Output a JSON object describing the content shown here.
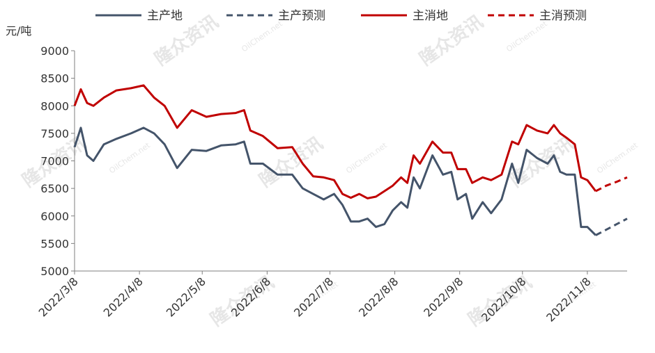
{
  "chart_data": {
    "type": "line",
    "y_label": "元/吨",
    "watermark": [
      "隆众资讯",
      "OilChem.net"
    ],
    "x": [
      "2022/3/8",
      "2022/3/11",
      "2022/3/14",
      "2022/3/17",
      "2022/3/22",
      "2022/3/28",
      "2022/4/4",
      "2022/4/10",
      "2022/4/15",
      "2022/4/20",
      "2022/4/26",
      "2022/5/3",
      "2022/5/10",
      "2022/5/17",
      "2022/5/24",
      "2022/5/28",
      "2022/5/31",
      "2022/6/6",
      "2022/6/13",
      "2022/6/20",
      "2022/6/25",
      "2022/6/30",
      "2022/7/5",
      "2022/7/10",
      "2022/7/14",
      "2022/7/18",
      "2022/7/22",
      "2022/7/26",
      "2022/7/30",
      "2022/8/3",
      "2022/8/7",
      "2022/8/11",
      "2022/8/14",
      "2022/8/17",
      "2022/8/20",
      "2022/8/26",
      "2022/8/31",
      "2022/9/4",
      "2022/9/7",
      "2022/9/11",
      "2022/9/14",
      "2022/9/19",
      "2022/9/23",
      "2022/9/28",
      "2022/10/3",
      "2022/10/6",
      "2022/10/10",
      "2022/10/15",
      "2022/10/20",
      "2022/10/23",
      "2022/10/26",
      "2022/10/29",
      "2022/11/2",
      "2022/11/5",
      "2022/11/8",
      "2022/11/12",
      "2022/11/17",
      "2022/11/22",
      "2022/11/27"
    ],
    "series": [
      {
        "name": "主产地",
        "color": "#44546a",
        "dash": false,
        "values": [
          7250,
          7600,
          7100,
          7000,
          7300,
          7400,
          7500,
          7600,
          7500,
          7300,
          6870,
          7200,
          7180,
          7280,
          7300,
          7350,
          6950,
          6950,
          6750,
          6750,
          6500,
          6400,
          6300,
          6400,
          6200,
          5900,
          5900,
          5950,
          5800,
          5850,
          6100,
          6250,
          6150,
          6700,
          6500,
          7100,
          6750,
          6800,
          6300,
          6400,
          5950,
          6250,
          6050,
          6300,
          6950,
          6600,
          7200,
          7050,
          6950,
          7100,
          6800,
          6750,
          6750,
          5800,
          5800,
          5650,
          null,
          null,
          null
        ]
      },
      {
        "name": "主产预测",
        "color": "#44546a",
        "dash": true,
        "values": [
          null,
          null,
          null,
          null,
          null,
          null,
          null,
          null,
          null,
          null,
          null,
          null,
          null,
          null,
          null,
          null,
          null,
          null,
          null,
          null,
          null,
          null,
          null,
          null,
          null,
          null,
          null,
          null,
          null,
          null,
          null,
          null,
          null,
          null,
          null,
          null,
          null,
          null,
          null,
          null,
          null,
          null,
          null,
          null,
          null,
          null,
          null,
          null,
          null,
          null,
          null,
          null,
          null,
          null,
          null,
          5650,
          5750,
          5850,
          5950
        ]
      },
      {
        "name": "主消地",
        "color": "#c00000",
        "dash": false,
        "values": [
          8000,
          8300,
          8050,
          8000,
          8150,
          8280,
          8320,
          8370,
          8150,
          8000,
          7600,
          7920,
          7800,
          7850,
          7870,
          7920,
          7550,
          7450,
          7230,
          7250,
          6950,
          6720,
          6700,
          6650,
          6400,
          6330,
          6400,
          6320,
          6350,
          6450,
          6550,
          6700,
          6600,
          7100,
          6950,
          7350,
          7150,
          7150,
          6850,
          6850,
          6600,
          6700,
          6650,
          6750,
          7350,
          7300,
          7650,
          7550,
          7500,
          7650,
          7500,
          7420,
          7300,
          6700,
          6650,
          6450,
          null,
          null,
          null
        ]
      },
      {
        "name": "主消预测",
        "color": "#c00000",
        "dash": true,
        "values": [
          null,
          null,
          null,
          null,
          null,
          null,
          null,
          null,
          null,
          null,
          null,
          null,
          null,
          null,
          null,
          null,
          null,
          null,
          null,
          null,
          null,
          null,
          null,
          null,
          null,
          null,
          null,
          null,
          null,
          null,
          null,
          null,
          null,
          null,
          null,
          null,
          null,
          null,
          null,
          null,
          null,
          null,
          null,
          null,
          null,
          null,
          null,
          null,
          null,
          null,
          null,
          null,
          null,
          null,
          null,
          6450,
          6550,
          6620,
          6700
        ]
      }
    ],
    "xlim": [
      "2022/3/8",
      "2022/11/27"
    ],
    "xticks": [
      "2022/3/8",
      "2022/4/8",
      "2022/5/8",
      "2022/6/8",
      "2022/7/8",
      "2022/8/8",
      "2022/9/8",
      "2022/10/8",
      "2022/11/8"
    ],
    "ylim": [
      5000,
      9000
    ],
    "yticks": [
      5000,
      5500,
      6000,
      6500,
      7000,
      7500,
      8000,
      8500,
      9000
    ],
    "grid": false,
    "legend": "top"
  }
}
